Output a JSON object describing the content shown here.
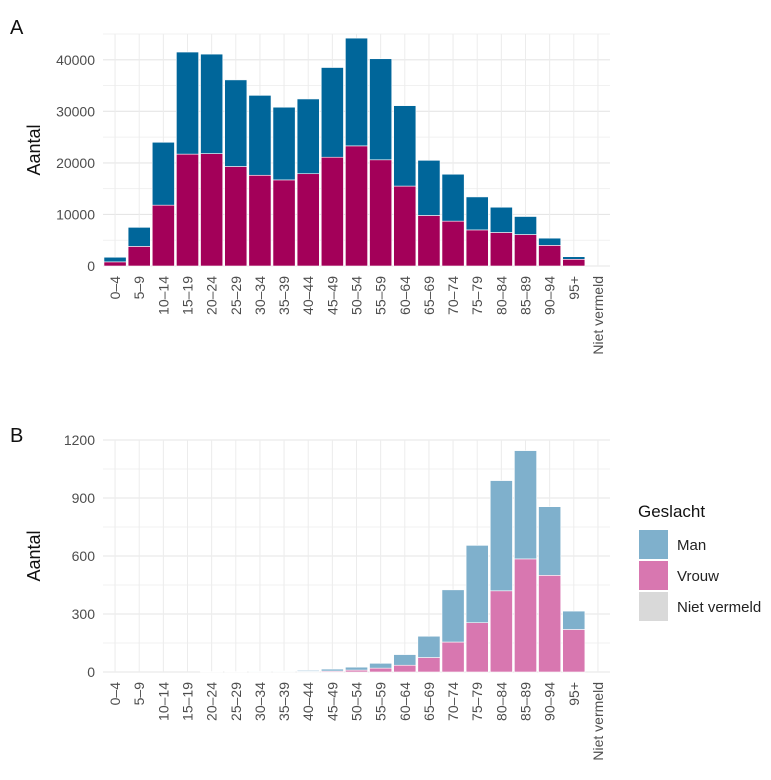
{
  "legend": {
    "title": "Geslacht",
    "items": [
      {
        "label": "Man",
        "color": "#7fb0cc"
      },
      {
        "label": "Vrouw",
        "color": "#d877b0"
      },
      {
        "label": "Niet vermeld",
        "color": "#d9d9d9"
      }
    ]
  },
  "chart_data": [
    {
      "panel": "A",
      "type": "bar",
      "stacked": true,
      "ylabel": "Aantal",
      "xlabel": "",
      "ylim": [
        0,
        45000
      ],
      "yticks": [
        0,
        10000,
        20000,
        30000,
        40000
      ],
      "grid": true,
      "categories": [
        "0–4",
        "5–9",
        "10–14",
        "15–19",
        "20–24",
        "25–29",
        "30–34",
        "35–39",
        "40–44",
        "45–49",
        "50–54",
        "55–59",
        "60–64",
        "65–69",
        "70–74",
        "75–79",
        "80–84",
        "85–89",
        "90–94",
        "95+",
        "Niet vermeld"
      ],
      "series": [
        {
          "key": "vrouw",
          "color": "#a30059",
          "values": [
            800,
            3800,
            11800,
            21700,
            21800,
            19300,
            17600,
            16700,
            17900,
            21100,
            23300,
            20600,
            15500,
            9800,
            8700,
            7000,
            6500,
            6100,
            4000,
            1300,
            0
          ]
        },
        {
          "key": "man",
          "color": "#00669a",
          "values": [
            900,
            3700,
            12200,
            19800,
            19300,
            16800,
            15500,
            14100,
            14500,
            17400,
            20900,
            19600,
            15600,
            10700,
            9100,
            6400,
            4900,
            3500,
            1400,
            500,
            0
          ]
        },
        {
          "key": "niet vermeld",
          "color": "#d9d9d9",
          "values": [
            0,
            0,
            0,
            0,
            0,
            0,
            0,
            0,
            0,
            0,
            0,
            0,
            0,
            0,
            0,
            0,
            0,
            0,
            0,
            0,
            0
          ]
        }
      ]
    },
    {
      "panel": "B",
      "type": "bar",
      "stacked": true,
      "ylabel": "Aantal",
      "xlabel": "",
      "ylim": [
        0,
        1200
      ],
      "yticks": [
        0,
        300,
        600,
        900,
        1200
      ],
      "grid": true,
      "legend_position": "right",
      "categories": [
        "0–4",
        "5–9",
        "10–14",
        "15–19",
        "20–24",
        "25–29",
        "30–34",
        "35–39",
        "40–44",
        "45–49",
        "50–54",
        "55–59",
        "60–64",
        "65–69",
        "70–74",
        "75–79",
        "80–84",
        "85–89",
        "90–94",
        "95+",
        "Niet vermeld"
      ],
      "series": [
        {
          "name": "Vrouw",
          "color": "#d877b0",
          "values": [
            0,
            0,
            0,
            0,
            1,
            1,
            1,
            2,
            3,
            5,
            10,
            20,
            35,
            75,
            155,
            255,
            420,
            585,
            500,
            220,
            0
          ]
        },
        {
          "name": "Man",
          "color": "#7fb0cc",
          "values": [
            0,
            0,
            0,
            0,
            1,
            1,
            2,
            3,
            5,
            10,
            15,
            25,
            55,
            110,
            270,
            400,
            570,
            560,
            355,
            95,
            0
          ]
        },
        {
          "name": "Niet vermeld",
          "color": "#d9d9d9",
          "values": [
            0,
            0,
            0,
            0,
            0,
            0,
            0,
            0,
            0,
            0,
            0,
            0,
            0,
            0,
            0,
            0,
            0,
            0,
            0,
            0,
            0
          ]
        }
      ]
    }
  ]
}
